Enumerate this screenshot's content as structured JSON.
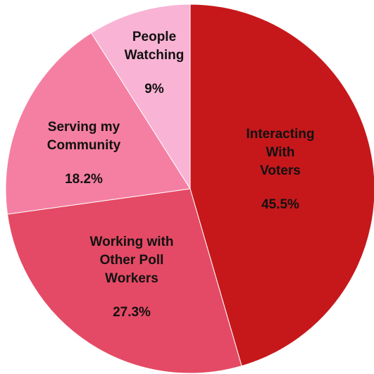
{
  "chart_data": {
    "type": "pie",
    "start_angle_deg": 0,
    "direction": "clockwise",
    "slices": [
      {
        "label": "Interacting With Voters",
        "label_lines": [
          "Interacting",
          "With",
          "Voters"
        ],
        "value": 45.5,
        "value_label": "45.5%",
        "color": "#c6181b"
      },
      {
        "label": "Working with Other Poll Workers",
        "label_lines": [
          "Working with",
          "Other Poll",
          "Workers"
        ],
        "value": 27.3,
        "value_label": "27.3%",
        "color": "#e44a65"
      },
      {
        "label": "Serving my Community",
        "label_lines": [
          "Serving my",
          "Community"
        ],
        "value": 18.2,
        "value_label": "18.2%",
        "color": "#f57fa3"
      },
      {
        "label": "People Watching",
        "label_lines": [
          "People",
          "Watching"
        ],
        "value": 9,
        "value_label": "9%",
        "color": "#f9b3d4"
      }
    ]
  }
}
